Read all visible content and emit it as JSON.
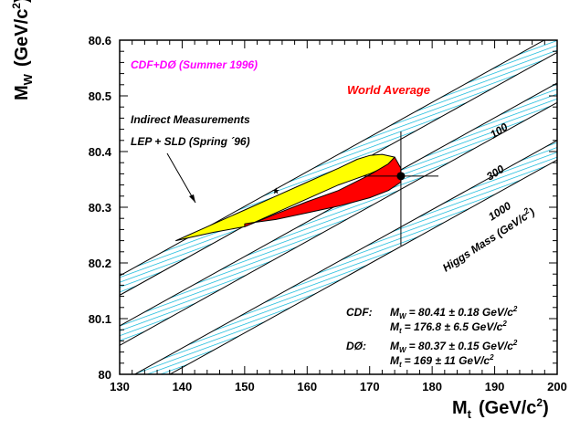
{
  "chart_data": {
    "type": "scatter",
    "xlabel_main": "M",
    "xlabel_sub": "t",
    "xlabel_unit_pre": "(GeV/c",
    "xlabel_unit_sup": "2",
    "xlabel_unit_post": ")",
    "ylabel_main": "M",
    "ylabel_sub": "W",
    "ylabel_unit_pre": "(GeV/c",
    "ylabel_unit_sup": "2",
    "ylabel_unit_post": ")",
    "xlim": [
      130,
      200
    ],
    "ylim": [
      80.0,
      80.6
    ],
    "x_ticks": [
      130,
      140,
      150,
      160,
      170,
      180,
      190,
      200
    ],
    "y_ticks": [
      80,
      80.1,
      80.2,
      80.3,
      80.4,
      80.5,
      80.6
    ],
    "x_tick_labels": [
      "130",
      "140",
      "150",
      "160",
      "170",
      "180",
      "190",
      "200"
    ],
    "y_tick_labels": [
      "80",
      "80.1",
      "80.2",
      "80.3",
      "80.4",
      "80.5",
      "80.6"
    ],
    "higgs_bands": [
      {
        "label": "100",
        "lower": [
          [
            130,
            80.142
          ],
          [
            200,
            80.578
          ]
        ],
        "width": 0.035
      },
      {
        "label": "300",
        "lower": [
          [
            130,
            80.052
          ],
          [
            200,
            80.488
          ]
        ],
        "width": 0.035
      },
      {
        "label": "1000",
        "lower": [
          [
            130,
            79.95
          ],
          [
            200,
            80.385
          ]
        ],
        "width": 0.035
      }
    ],
    "higgs_axis_label": "Higgs Mass (GeV/c",
    "higgs_axis_label_sup": "2",
    "higgs_axis_label_post": ")",
    "indirect_contour": {
      "center": [
        155,
        80.33
      ],
      "boundary": [
        [
          139,
          80.24
        ],
        [
          141,
          80.25
        ],
        [
          145,
          80.27
        ],
        [
          150,
          80.295
        ],
        [
          155,
          80.32
        ],
        [
          160,
          80.345
        ],
        [
          165,
          80.37
        ],
        [
          168,
          80.386
        ],
        [
          170,
          80.393
        ],
        [
          172,
          80.395
        ],
        [
          174,
          80.39
        ],
        [
          173,
          80.375
        ],
        [
          170,
          80.36
        ],
        [
          165,
          80.34
        ],
        [
          160,
          80.315
        ],
        [
          155,
          80.29
        ],
        [
          150,
          80.265
        ],
        [
          145,
          80.255
        ],
        [
          141,
          80.245
        ]
      ],
      "color": "#ffff00"
    },
    "world_average_contour": {
      "boundary": [
        [
          150,
          80.265
        ],
        [
          155,
          80.288
        ],
        [
          160,
          80.31
        ],
        [
          165,
          80.33
        ],
        [
          170,
          80.358
        ],
        [
          173,
          80.378
        ],
        [
          174,
          80.39
        ],
        [
          175,
          80.37
        ],
        [
          175,
          80.345
        ],
        [
          173,
          80.33
        ],
        [
          170,
          80.317
        ],
        [
          165,
          80.302
        ],
        [
          160,
          80.29
        ],
        [
          155,
          80.278
        ],
        [
          151,
          80.272
        ],
        [
          150,
          80.27
        ]
      ],
      "color": "#ff0000"
    },
    "world_average_point": {
      "x": 175,
      "y": 80.356,
      "x_err": 6,
      "y_err_up": 0.08,
      "y_err_down": 0.125
    },
    "texts": {
      "collab": "CDF+DØ (Summer 1996)",
      "world_average": "World Average",
      "indirect_line1": "Indirect Measurements",
      "indirect_line2": "LEP + SLD (Spring ´96)"
    },
    "measurements": [
      {
        "exp": "CDF:",
        "mw_val": "= 80.41 ± 0.18 GeV/c",
        "mt_val": "= 176.8 ± 6.5 GeV/c"
      },
      {
        "exp": "DØ:",
        "mw_val": "= 80.37 ± 0.15 GeV/c",
        "mt_val": "= 169 ± 11 GeV/c"
      }
    ],
    "mw_symbol": "M",
    "mw_sub": "W",
    "mt_symbol": "M",
    "mt_sub": "t",
    "unit_sup": "2",
    "colors": {
      "collab_text": "#ff00ff",
      "world_avg_text": "#ff0000",
      "band_hatch": "#00b4d8"
    }
  }
}
